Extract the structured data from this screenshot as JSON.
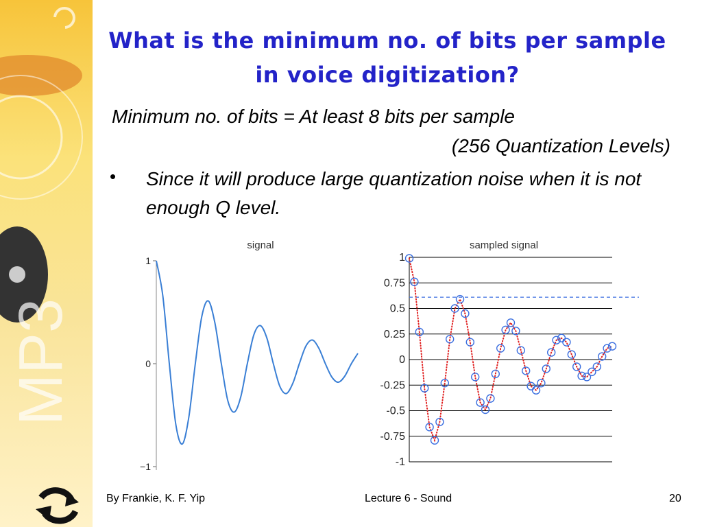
{
  "sidebar_text": "MP3",
  "title": "What is the minimum no. of bits per sample in voice digitization?",
  "body": {
    "line1": "Minimum no. of bits = At least 8 bits per sample",
    "line2": "(256 Quantization Levels)",
    "bullet": "Since it will produce large quantization noise when it is not enough Q level."
  },
  "chart_data": [
    {
      "type": "line",
      "title": "signal",
      "color": "#3a7fd5",
      "ylim": [
        -1,
        1
      ],
      "yticks": [
        1,
        0,
        {
          "value": -1,
          "label": "−1"
        }
      ],
      "values": [
        1,
        0.66,
        0,
        -0.59,
        -0.78,
        -0.52,
        0,
        0.46,
        0.61,
        0.4,
        0,
        -0.36,
        -0.47,
        -0.32,
        0,
        0.28,
        0.37,
        0.25,
        0,
        -0.22,
        -0.29,
        -0.19,
        0,
        0.17,
        0.23,
        0.15,
        0,
        -0.13,
        -0.18,
        -0.12,
        0,
        0.1
      ]
    },
    {
      "type": "sampled",
      "title": "sampled signal",
      "color": "#3b6fe0",
      "line_color": "#e02020",
      "grid": true,
      "threshold": 0.61,
      "ylim": [
        -1,
        1
      ],
      "yticks": [
        1,
        0.75,
        0.5,
        0.25,
        0,
        -0.25,
        -0.5,
        -0.75,
        -1
      ],
      "values": [
        0.99,
        0.76,
        0.27,
        -0.28,
        -0.66,
        -0.79,
        -0.61,
        -0.23,
        0.2,
        0.5,
        0.59,
        0.45,
        0.17,
        -0.17,
        -0.42,
        -0.49,
        -0.38,
        -0.14,
        0.11,
        0.29,
        0.36,
        0.28,
        0.09,
        -0.11,
        -0.26,
        -0.3,
        -0.23,
        -0.09,
        0.07,
        0.19,
        0.21,
        0.17,
        0.05,
        -0.07,
        -0.16,
        -0.17,
        -0.12,
        -0.07,
        0.03,
        0.11,
        0.13
      ]
    }
  ],
  "footer": {
    "author": "By Frankie, K. F. Yip",
    "lecture": "Lecture 6 - Sound",
    "page": "20"
  }
}
